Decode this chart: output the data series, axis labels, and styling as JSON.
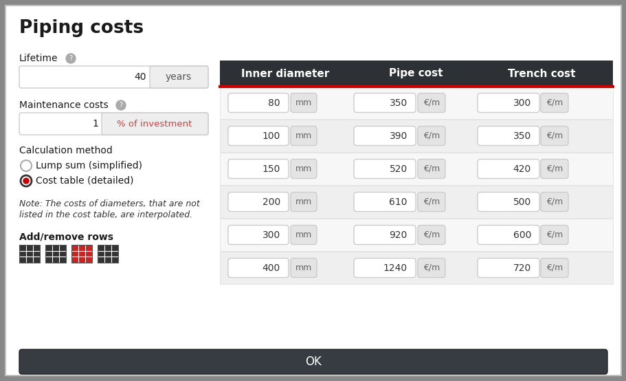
{
  "title": "Piping costs",
  "header_bg": "#2d3035",
  "header_text_color": "#ffffff",
  "header_red_line": "#cc0000",
  "table_header": [
    "Inner diameter",
    "Pipe cost",
    "Trench cost"
  ],
  "rows": [
    {
      "diameter": 80,
      "pipe_cost": 350,
      "trench_cost": 300
    },
    {
      "diameter": 100,
      "pipe_cost": 390,
      "trench_cost": 350
    },
    {
      "diameter": 150,
      "pipe_cost": 520,
      "trench_cost": 420
    },
    {
      "diameter": 200,
      "pipe_cost": 610,
      "trench_cost": 500
    },
    {
      "diameter": 300,
      "pipe_cost": 920,
      "trench_cost": 600
    },
    {
      "diameter": 400,
      "pipe_cost": 1240,
      "trench_cost": 720
    }
  ],
  "unit_mm": "mm",
  "unit_epm": "€/m",
  "lifetime_label": "Lifetime",
  "lifetime_value": "40",
  "lifetime_unit": "years",
  "maintenance_label": "Maintenance costs",
  "maintenance_value": "1",
  "maintenance_unit": "% of investment",
  "calc_method_label": "Calculation method",
  "option1": "Lump sum (simplified)",
  "option2": "Cost table (detailed)",
  "note_line1": "Note: The costs of diameters, that are not",
  "note_line2": "listed in the cost table, are interpolated.",
  "add_remove_label": "Add/remove rows",
  "ok_button_text": "OK",
  "ok_button_bg": "#373b42",
  "ok_button_text_color": "#ffffff",
  "dialog_bg": "#ffffff",
  "outer_bg": "#888888",
  "row_colors": [
    "#f7f7f7",
    "#efefef"
  ]
}
